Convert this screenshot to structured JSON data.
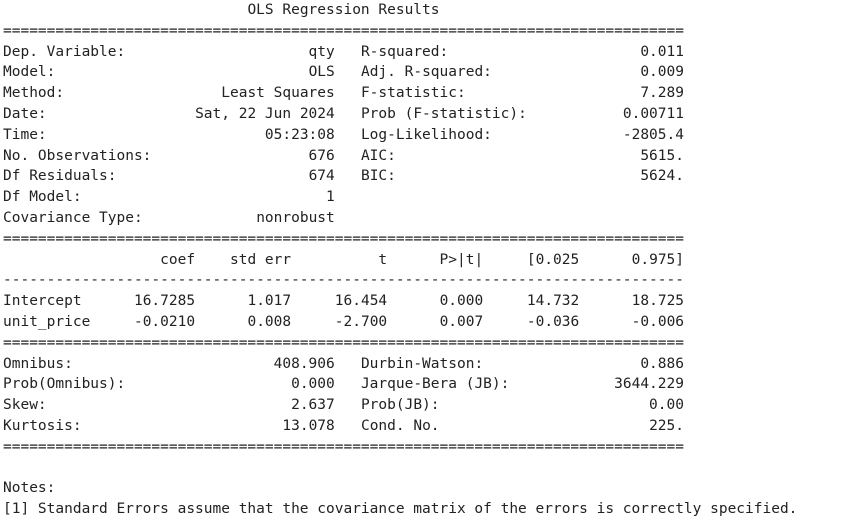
{
  "title": "OLS Regression Results",
  "model_info": {
    "left": [
      {
        "label": "Dep. Variable:",
        "value": "qty"
      },
      {
        "label": "Model:",
        "value": "OLS"
      },
      {
        "label": "Method:",
        "value": "Least Squares"
      },
      {
        "label": "Date:",
        "value": "Sat, 22 Jun 2024"
      },
      {
        "label": "Time:",
        "value": "05:23:08"
      },
      {
        "label": "No. Observations:",
        "value": "676"
      },
      {
        "label": "Df Residuals:",
        "value": "674"
      },
      {
        "label": "Df Model:",
        "value": "1"
      },
      {
        "label": "Covariance Type:",
        "value": "nonrobust"
      }
    ],
    "right": [
      {
        "label": "R-squared:",
        "value": "0.011"
      },
      {
        "label": "Adj. R-squared:",
        "value": "0.009"
      },
      {
        "label": "F-statistic:",
        "value": "7.289"
      },
      {
        "label": "Prob (F-statistic):",
        "value": "0.00711"
      },
      {
        "label": "Log-Likelihood:",
        "value": "-2805.4"
      },
      {
        "label": "AIC:",
        "value": "5615."
      },
      {
        "label": "BIC:",
        "value": "5624."
      }
    ]
  },
  "coef_table": {
    "headers": [
      "coef",
      "std err",
      "t",
      "P>|t|",
      "[0.025",
      "0.975]"
    ],
    "rows": [
      {
        "name": "Intercept",
        "cells": [
          "16.7285",
          "1.017",
          "16.454",
          "0.000",
          "14.732",
          "18.725"
        ]
      },
      {
        "name": "unit_price",
        "cells": [
          "-0.0210",
          "0.008",
          "-2.700",
          "0.007",
          "-0.036",
          "-0.006"
        ]
      }
    ]
  },
  "diagnostics": {
    "left": [
      {
        "label": "Omnibus:",
        "value": "408.906"
      },
      {
        "label": "Prob(Omnibus):",
        "value": "0.000"
      },
      {
        "label": "Skew:",
        "value": "2.637"
      },
      {
        "label": "Kurtosis:",
        "value": "13.078"
      }
    ],
    "right": [
      {
        "label": "Durbin-Watson:",
        "value": "0.886"
      },
      {
        "label": "Jarque-Bera (JB):",
        "value": "3644.229"
      },
      {
        "label": "Prob(JB):",
        "value": "0.00"
      },
      {
        "label": "Cond. No.",
        "value": "225."
      }
    ]
  },
  "notes": {
    "heading": "Notes:",
    "items": [
      "[1] Standard Errors assume that the covariance matrix of the errors is correctly specified."
    ]
  }
}
